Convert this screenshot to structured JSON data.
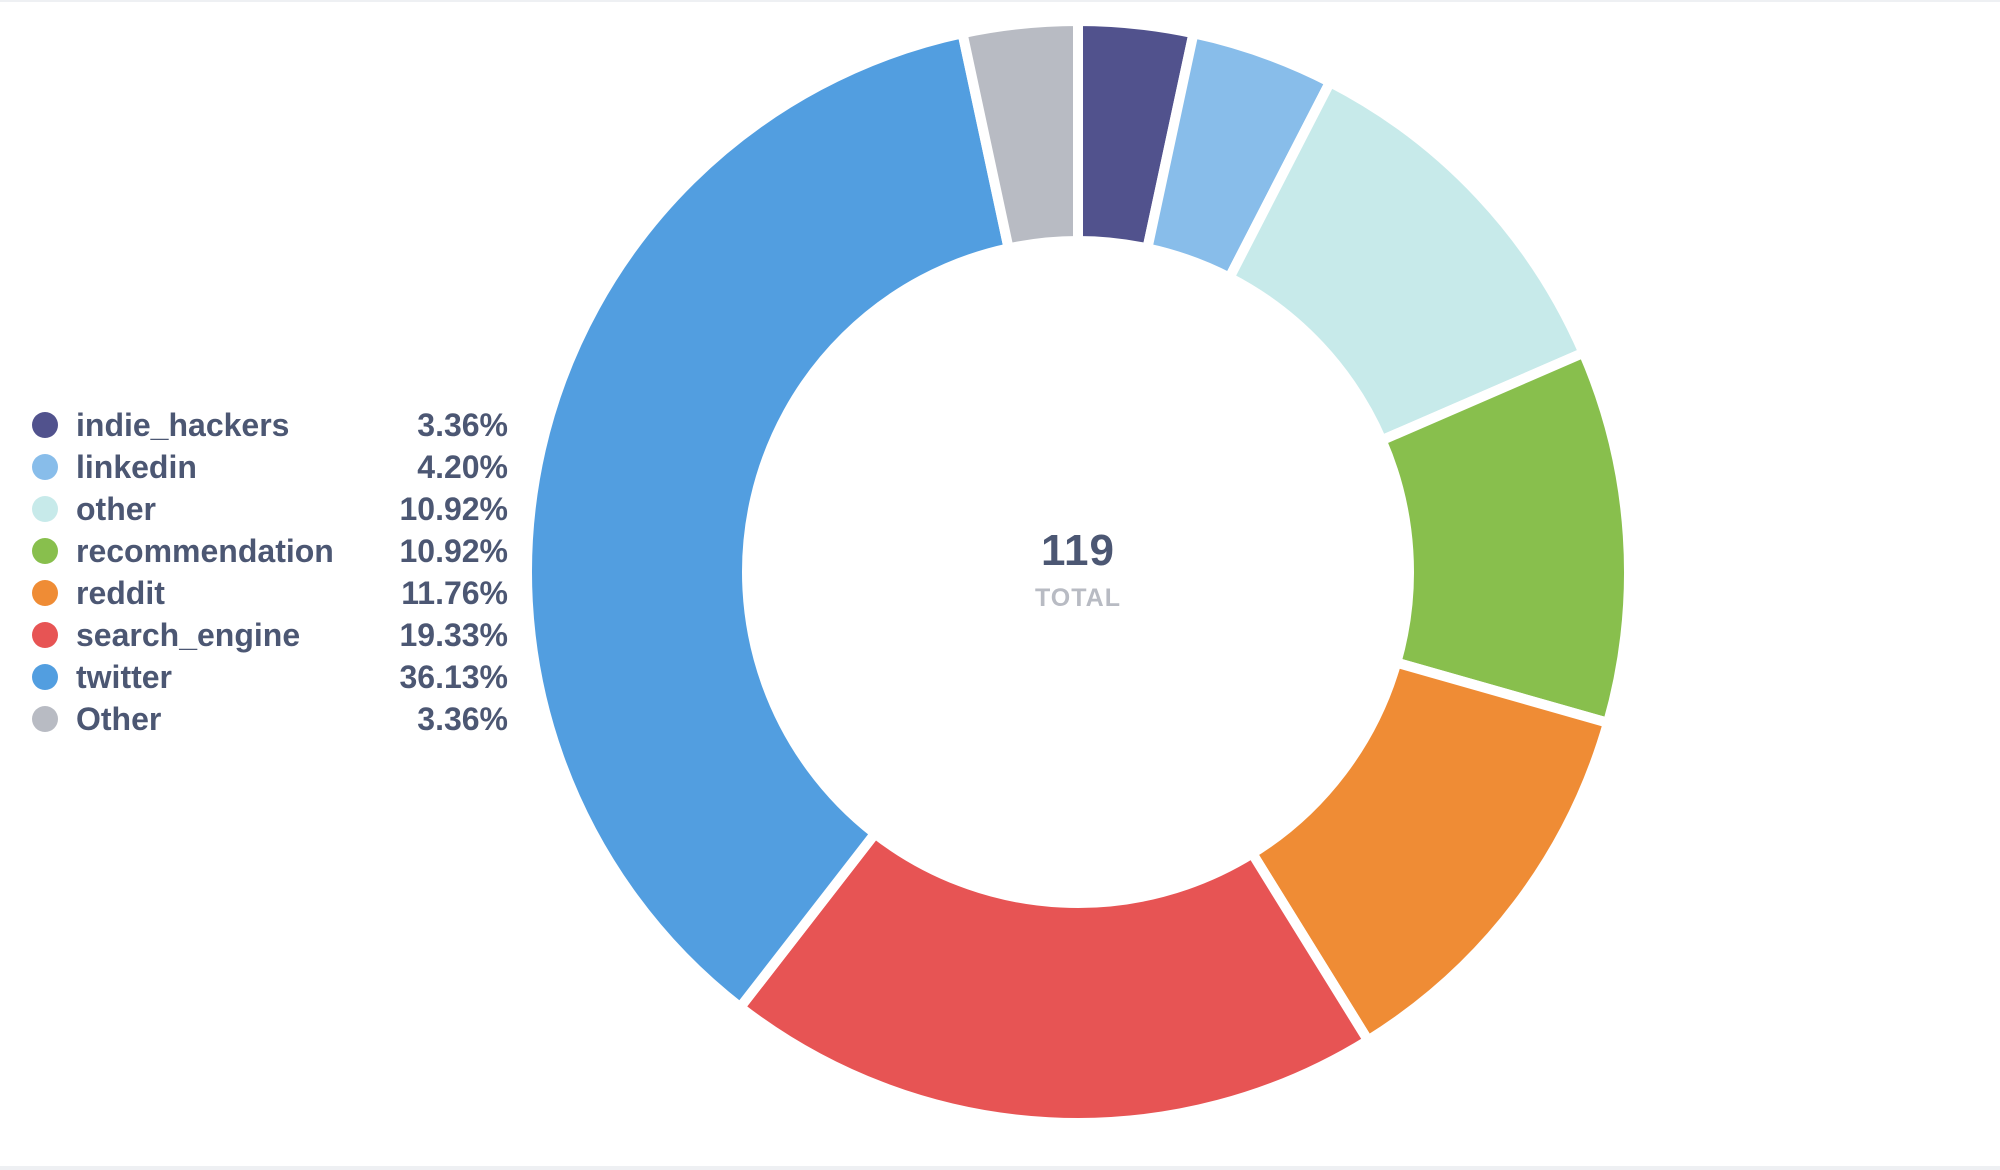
{
  "chart_data": {
    "type": "pie",
    "variant": "donut",
    "total": "119",
    "total_label": "TOTAL",
    "categories": [
      "indie_hackers",
      "linkedin",
      "other",
      "recommendation",
      "reddit",
      "search_engine",
      "twitter",
      "Other"
    ],
    "values": [
      4,
      5,
      13,
      13,
      14,
      23,
      43,
      4
    ],
    "percent_labels": [
      "3.36%",
      "4.20%",
      "10.92%",
      "10.92%",
      "11.76%",
      "19.33%",
      "36.13%",
      "3.36%"
    ],
    "colors": [
      "#51528d",
      "#88bdea",
      "#c7eaea",
      "#88bf4d",
      "#ef8c35",
      "#e75454",
      "#529ee0",
      "#b8bbc3"
    ],
    "legend_position": "left"
  },
  "legend": [
    {
      "label": "indie_hackers",
      "value": "3.36%",
      "color": "#51528d"
    },
    {
      "label": "linkedin",
      "value": "4.20%",
      "color": "#88bdea"
    },
    {
      "label": "other",
      "value": "10.92%",
      "color": "#c7eaea"
    },
    {
      "label": "recommendation",
      "value": "10.92%",
      "color": "#88bf4d"
    },
    {
      "label": "reddit",
      "value": "11.76%",
      "color": "#ef8c35"
    },
    {
      "label": "search_engine",
      "value": "19.33%",
      "color": "#e75454"
    },
    {
      "label": "twitter",
      "value": "36.13%",
      "color": "#529ee0"
    },
    {
      "label": "Other",
      "value": "3.36%",
      "color": "#b8bbc3"
    }
  ]
}
